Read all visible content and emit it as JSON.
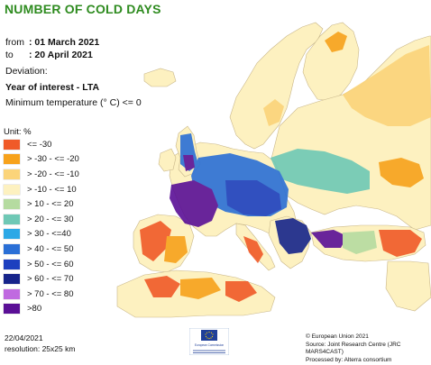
{
  "title": "NUMBER OF COLD DAYS",
  "period": {
    "from_label": "from",
    "from_value": ": 01 March 2021",
    "to_label": "to",
    "to_value": ": 20 April 2021"
  },
  "deviation_label": "Deviation:",
  "year_of_interest": "Year of interest - LTA",
  "threshold": "Minimum temperature (° C) <= 0",
  "legend": {
    "unit": "Unit: %",
    "items": [
      {
        "label": "<= -30",
        "color": "#f05a28"
      },
      {
        "label": "> -30 - <= -20",
        "color": "#f7a21b"
      },
      {
        "label": "> -20 - <= -10",
        "color": "#fbd47a"
      },
      {
        "label": "> -10 - <= 10",
        "color": "#fdf1c0"
      },
      {
        "label": "> 10 - <= 20",
        "color": "#b5dba0"
      },
      {
        "label": "> 20 - <= 30",
        "color": "#6ec8b5"
      },
      {
        "label": "> 30 - <=40",
        "color": "#2ca8e6"
      },
      {
        "label": "> 40 - <= 50",
        "color": "#2a6fd6"
      },
      {
        "label": "> 50 - <= 60",
        "color": "#1c3fbf"
      },
      {
        "label": "> 60 - <= 70",
        "color": "#16248a"
      },
      {
        "label": "> 70 - <= 80",
        "color": "#c06ae0"
      },
      {
        "label": ">80",
        "color": "#5a0f96"
      }
    ]
  },
  "footer": {
    "date": "22/04/2021",
    "resolution": "resolution: 25x25 km"
  },
  "credits": [
    "© European Union 2021",
    "Source: Joint Research Centre (JRC MARS4CAST)",
    "Processed by: Alterra consortium"
  ],
  "logo_text": "European Commission",
  "colors": {
    "title": "#2e8b1f",
    "sea": "#ffffff",
    "land_neutral": "#fdf1c0"
  }
}
